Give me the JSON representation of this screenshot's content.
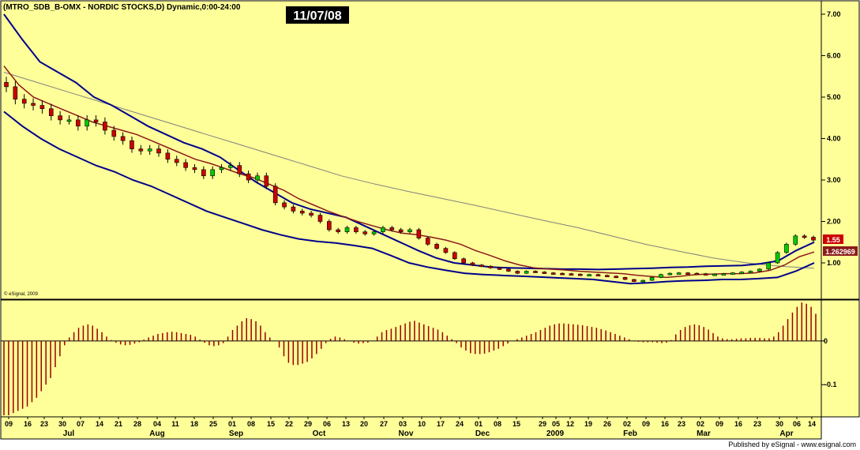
{
  "header": {
    "title": "(MTRO_SDB_B-OMX - NORDIC STOCKS,D) Dynamic,0:00-24:00",
    "date_box": "11/07/08"
  },
  "copyright": "© eSignal, 2009",
  "footer": {
    "published": "Published by eSignal - www.esignal.com"
  },
  "price_tags": {
    "last": "1.55",
    "line": "1.262969"
  },
  "colors": {
    "panel_bg": "#ffff99",
    "up": "#00cc00",
    "down": "#cc0000",
    "band": "#00008b",
    "mid": "#8b1a1a",
    "slow": "#808080",
    "hist": "#990000"
  },
  "chart_data": [
    {
      "type": "candlestick",
      "title": "(MTRO_SDB_B-OMX - NORDIC STOCKS,D) Dynamic,0:00-24:00",
      "ylim": [
        0.0,
        7.3
      ],
      "y_ticks": [
        "7.00",
        "6.00",
        "5.00",
        "4.00",
        "3.00",
        "2.00",
        "1.00"
      ],
      "x_ticks": [
        "09",
        "16",
        "23",
        "30",
        "07",
        "14",
        "21",
        "28",
        "04",
        "11",
        "18",
        "25",
        "01",
        "08",
        "15",
        "22",
        "29",
        "06",
        "13",
        "20",
        "27",
        "03",
        "10",
        "17",
        "24",
        "01",
        "08",
        "15",
        "29",
        "05",
        "12",
        "19",
        "26",
        "02",
        "09",
        "16",
        "23",
        "02",
        "09",
        "16",
        "23",
        "30",
        "06",
        "14"
      ],
      "months": [
        "Jul",
        "Aug",
        "Sep",
        "Oct",
        "Nov",
        "Dec",
        "2009",
        "Feb",
        "Mar",
        "Apr"
      ],
      "close": [
        5.25,
        4.95,
        4.85,
        4.8,
        4.72,
        4.55,
        4.45,
        4.45,
        4.3,
        4.45,
        4.4,
        4.2,
        4.05,
        3.95,
        3.75,
        3.7,
        3.75,
        3.65,
        3.5,
        3.42,
        3.3,
        3.25,
        3.1,
        3.25,
        3.3,
        3.35,
        3.15,
        3.0,
        3.1,
        2.85,
        2.45,
        2.35,
        2.25,
        2.2,
        2.15,
        2.0,
        1.8,
        1.75,
        1.85,
        1.75,
        1.7,
        1.75,
        1.85,
        1.8,
        1.75,
        1.8,
        1.6,
        1.45,
        1.35,
        1.25,
        1.1,
        1.0,
        0.95,
        0.92,
        0.88,
        0.85,
        0.8,
        0.75,
        0.8,
        0.78,
        0.76,
        0.75,
        0.74,
        0.73,
        0.72,
        0.72,
        0.7,
        0.68,
        0.65,
        0.6,
        0.55,
        0.58,
        0.65,
        0.72,
        0.75,
        0.76,
        0.75,
        0.74,
        0.72,
        0.73,
        0.74,
        0.76,
        0.78,
        0.8,
        0.85,
        1.0,
        1.25,
        1.45,
        1.65,
        1.62,
        1.55
      ],
      "ma_mid": [
        5.75,
        5.3,
        5.0,
        4.85,
        4.7,
        4.55,
        4.4,
        4.3,
        4.2,
        4.1,
        3.95,
        3.8,
        3.65,
        3.5,
        3.4,
        3.28,
        3.15,
        3.05,
        2.9,
        2.75,
        2.55,
        2.4,
        2.25,
        2.12,
        2.0,
        1.9,
        1.8,
        1.72,
        1.68,
        1.62,
        1.55,
        1.45,
        1.3,
        1.18,
        1.05,
        0.95,
        0.88,
        0.85,
        0.83,
        0.8,
        0.78,
        0.76,
        0.74,
        0.7,
        0.67,
        0.65,
        0.68,
        0.72,
        0.73,
        0.74,
        0.74,
        0.76,
        0.82,
        0.95,
        1.15,
        1.263
      ],
      "ma_upper": [
        7.0,
        6.4,
        5.85,
        5.6,
        5.35,
        5.0,
        4.8,
        4.55,
        4.3,
        4.1,
        3.9,
        3.75,
        3.55,
        3.25,
        2.95,
        2.7,
        2.45,
        2.3,
        2.2,
        2.1,
        1.9,
        1.7,
        1.5,
        1.3,
        1.12,
        1.0,
        0.95,
        0.9,
        0.88,
        0.87,
        0.86,
        0.85,
        0.85,
        0.84,
        0.85,
        0.86,
        0.87,
        0.89,
        0.9,
        0.92,
        0.93,
        0.94,
        0.98,
        1.05,
        1.3,
        1.5
      ],
      "ma_lower": [
        4.65,
        4.3,
        4.0,
        3.75,
        3.55,
        3.35,
        3.2,
        3.0,
        2.85,
        2.65,
        2.45,
        2.25,
        2.1,
        1.95,
        1.8,
        1.68,
        1.58,
        1.52,
        1.48,
        1.42,
        1.35,
        1.18,
        1.0,
        0.9,
        0.82,
        0.75,
        0.72,
        0.7,
        0.68,
        0.66,
        0.64,
        0.62,
        0.6,
        0.55,
        0.5,
        0.52,
        0.55,
        0.57,
        0.58,
        0.6,
        0.6,
        0.62,
        0.65,
        0.8,
        1.0
      ],
      "ma_slow": [
        5.6,
        5.35,
        5.1,
        4.85,
        4.6,
        4.35,
        4.1,
        3.85,
        3.6,
        3.35,
        3.1,
        2.9,
        2.72,
        2.55,
        2.38,
        2.2,
        2.02,
        1.85,
        1.65,
        1.45,
        1.28,
        1.12,
        1.0,
        0.92,
        0.87
      ]
    },
    {
      "type": "bar",
      "ylim": [
        -0.17,
        0.09
      ],
      "y_ticks": [
        "0",
        "-0.1"
      ],
      "values": [
        -0.17,
        -0.17,
        -0.165,
        -0.16,
        -0.155,
        -0.15,
        -0.14,
        -0.13,
        -0.115,
        -0.1,
        -0.085,
        -0.06,
        -0.035,
        -0.01,
        0.008,
        0.02,
        0.03,
        0.035,
        0.038,
        0.035,
        0.028,
        0.02,
        0.01,
        0.002,
        -0.004,
        -0.008,
        -0.01,
        -0.009,
        -0.006,
        -0.003,
        0.003,
        0.008,
        0.012,
        0.016,
        0.018,
        0.02,
        0.021,
        0.02,
        0.018,
        0.016,
        0.014,
        0.01,
        0.003,
        -0.004,
        -0.01,
        -0.012,
        -0.01,
        -0.005,
        0.01,
        0.025,
        0.035,
        0.045,
        0.052,
        0.05,
        0.045,
        0.035,
        0.02,
        0.008,
        0.0,
        -0.015,
        -0.035,
        -0.05,
        -0.055,
        -0.055,
        -0.052,
        -0.048,
        -0.04,
        -0.03,
        -0.018,
        -0.005,
        0.005,
        0.01,
        0.008,
        0.004,
        0.0,
        -0.004,
        -0.006,
        -0.005,
        -0.004,
        0.0,
        0.01,
        0.02,
        0.025,
        0.028,
        0.032,
        0.036,
        0.04,
        0.044,
        0.046,
        0.042,
        0.038,
        0.034,
        0.03,
        0.026,
        0.02,
        0.012,
        0.004,
        -0.005,
        -0.015,
        -0.022,
        -0.028,
        -0.03,
        -0.03,
        -0.029,
        -0.026,
        -0.022,
        -0.018,
        -0.012,
        -0.006,
        0.0,
        0.004,
        0.008,
        0.012,
        0.016,
        0.02,
        0.025,
        0.03,
        0.035,
        0.038,
        0.04,
        0.04,
        0.039,
        0.038,
        0.037,
        0.036,
        0.034,
        0.032,
        0.03,
        0.027,
        0.024,
        0.02,
        0.016,
        0.012,
        0.008,
        0.004,
        0.0,
        -0.002,
        -0.003,
        -0.003,
        -0.003,
        -0.004,
        -0.005,
        -0.004,
        0.002,
        0.015,
        0.025,
        0.032,
        0.036,
        0.038,
        0.036,
        0.032,
        0.026,
        0.018,
        0.01,
        0.006,
        0.004,
        0.004,
        0.005,
        0.006,
        0.006,
        0.007,
        0.007,
        0.007,
        0.006,
        0.006,
        0.01,
        0.02,
        0.035,
        0.05,
        0.065,
        0.078,
        0.088,
        0.085,
        0.078,
        0.062
      ]
    }
  ]
}
